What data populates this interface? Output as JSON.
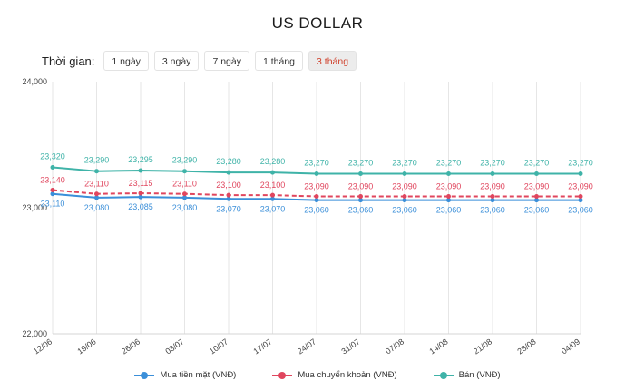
{
  "page_title": "US DOLLAR",
  "period_selector": {
    "label": "Thời gian:",
    "options": [
      "1 ngày",
      "3 ngày",
      "7 ngày",
      "1 tháng",
      "3 tháng"
    ],
    "selected": "3 tháng"
  },
  "chart_data": {
    "type": "line",
    "categories": [
      "12/06",
      "19/06",
      "26/06",
      "03/07",
      "10/07",
      "17/07",
      "24/07",
      "31/07",
      "07/08",
      "14/08",
      "21/08",
      "28/08",
      "04/09"
    ],
    "y_ticks": [
      "22,000",
      "23,000",
      "24,000"
    ],
    "ylim": [
      22000,
      24000
    ],
    "grid": "vertical",
    "legend_position": "bottom",
    "series": [
      {
        "name": "Mua tiền mặt (VNĐ)",
        "color": "#3b8fd9",
        "line_style": "solid",
        "values": [
          23110,
          23080,
          23085,
          23080,
          23070,
          23070,
          23060,
          23060,
          23060,
          23060,
          23060,
          23060,
          23060
        ],
        "labels": [
          "23,110",
          "23,080",
          "23,085",
          "23,080",
          "23,070",
          "23,070",
          "23,060",
          "23,060",
          "23,060",
          "23,060",
          "23,060",
          "23,060",
          "23,060"
        ]
      },
      {
        "name": "Mua chuyển khoản (VNĐ)",
        "color": "#e0465e",
        "line_style": "dashed",
        "values": [
          23140,
          23110,
          23115,
          23110,
          23100,
          23100,
          23090,
          23090,
          23090,
          23090,
          23090,
          23090,
          23090
        ],
        "labels": [
          "23,140",
          "23,110",
          "23,115",
          "23,110",
          "23,100",
          "23,100",
          "23,090",
          "23,090",
          "23,090",
          "23,090",
          "23,090",
          "23,090",
          "23,090"
        ]
      },
      {
        "name": "Bán (VNĐ)",
        "color": "#3fb3a8",
        "line_style": "solid",
        "values": [
          23320,
          23290,
          23295,
          23290,
          23280,
          23280,
          23270,
          23270,
          23270,
          23270,
          23270,
          23270,
          23270
        ],
        "labels": [
          "23,320",
          "23,290",
          "23,295",
          "23,290",
          "23,280",
          "23,280",
          "23,270",
          "23,270",
          "23,270",
          "23,270",
          "23,270",
          "23,270",
          "23,270"
        ]
      }
    ]
  }
}
